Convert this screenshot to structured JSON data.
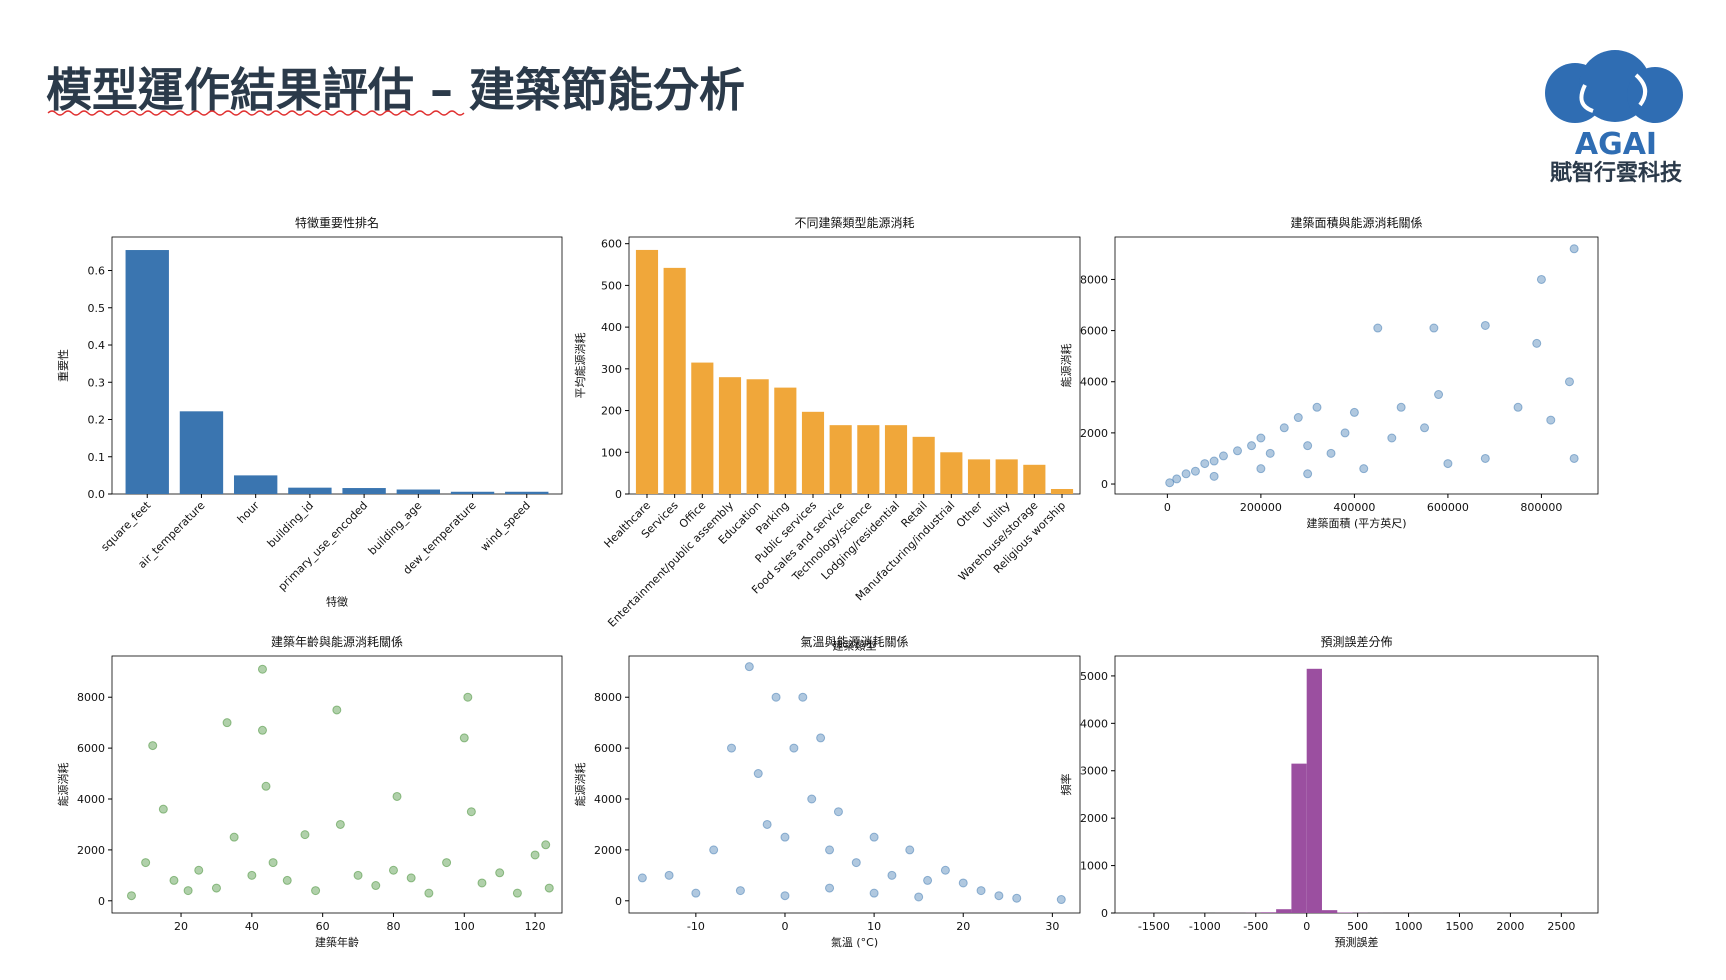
{
  "header": {
    "title": "模型運作結果評估 – 建築節能分析",
    "logo_name": "AGAI",
    "logo_company": "賦智行雲科技"
  },
  "chart_data": [
    {
      "type": "bar",
      "title": "特徵重要性排名",
      "x_label": "特徵",
      "y_label": "重要性",
      "color": "#3a75b0",
      "categories": [
        "square_feet",
        "air_temperature",
        "hour",
        "building_id",
        "primary_use_encoded",
        "building_age",
        "dew_temperature",
        "wind_speed"
      ],
      "values": [
        0.655,
        0.222,
        0.05,
        0.017,
        0.016,
        0.012,
        0.006,
        0.006
      ],
      "ylim": [
        0,
        0.69
      ],
      "yticks": [
        {
          "value": 0,
          "label": "0.0"
        },
        0.1,
        0.2,
        0.3,
        0.4,
        0.5,
        0.6
      ]
    },
    {
      "type": "bar",
      "title": "不同建築類型能源消耗",
      "x_label": "建築類型",
      "y_label": "平均能源消耗",
      "color": "#f0a73a",
      "categories": [
        "Healthcare",
        "Services",
        "Office",
        "Entertainment/public assembly",
        "Education",
        "Parking",
        "Public services",
        "Food sales and service",
        "Technology/science",
        "Lodging/residential",
        "Retail",
        "Manufacturing/industrial",
        "Other",
        "Utility",
        "Warehouse/storage",
        "Religious worship"
      ],
      "values": [
        585,
        542,
        315,
        280,
        275,
        255,
        197,
        165,
        165,
        165,
        137,
        100,
        83,
        83,
        70,
        12
      ],
      "ylim": [
        0,
        616
      ],
      "yticks": [
        0,
        100,
        200,
        300,
        400,
        500,
        600
      ]
    },
    {
      "type": "scatter",
      "title": "建築面積與能源消耗關係",
      "x_label": "建築面積 (平方英尺)",
      "y_label": "能源消耗",
      "color": "#3a75b0",
      "x": [
        5000,
        20000,
        40000,
        60000,
        80000,
        100000,
        120000,
        150000,
        180000,
        200000,
        220000,
        250000,
        280000,
        300000,
        320000,
        350000,
        380000,
        400000,
        420000,
        450000,
        480000,
        500000,
        550000,
        570000,
        580000,
        600000,
        680000,
        680000,
        750000,
        790000,
        800000,
        820000,
        860000,
        870000,
        870000,
        100000,
        200000,
        300000
      ],
      "values": [
        50,
        200,
        400,
        500,
        800,
        900,
        1100,
        1300,
        1500,
        1800,
        1200,
        2200,
        2600,
        1500,
        3000,
        1200,
        2000,
        2800,
        600,
        6100,
        1800,
        3000,
        2200,
        6100,
        3500,
        800,
        6200,
        1000,
        3000,
        5500,
        8000,
        2500,
        4000,
        9200,
        1000,
        300,
        600,
        400
      ],
      "xlim": [
        -112000,
        921000
      ],
      "ylim": [
        -390,
        9660
      ],
      "xticks": [
        0,
        200000,
        400000,
        600000,
        800000
      ],
      "yticks": [
        0,
        2000,
        4000,
        6000,
        8000
      ]
    },
    {
      "type": "scatter",
      "title": "建築年齡與能源消耗關係",
      "x_label": "建築年齡",
      "y_label": "能源消耗",
      "color": "#3a8a2a",
      "x": [
        6,
        10,
        12,
        15,
        18,
        22,
        25,
        30,
        33,
        35,
        40,
        43,
        43,
        44,
        46,
        50,
        55,
        58,
        64,
        65,
        70,
        75,
        80,
        81,
        85,
        90,
        95,
        100,
        101,
        102,
        105,
        110,
        115,
        120,
        123,
        124
      ],
      "values": [
        200,
        1500,
        6100,
        3600,
        800,
        400,
        1200,
        500,
        7000,
        2500,
        1000,
        9100,
        6700,
        4500,
        1500,
        800,
        2600,
        400,
        7500,
        3000,
        1000,
        600,
        1200,
        4100,
        900,
        300,
        1500,
        6400,
        8000,
        3500,
        700,
        1100,
        300,
        1800,
        2200,
        500
      ],
      "xlim": [
        0.5,
        127.6
      ],
      "ylim": [
        -480,
        9620
      ],
      "xticks": [
        20,
        40,
        60,
        80,
        100,
        120
      ],
      "yticks": [
        0,
        2000,
        4000,
        6000,
        8000
      ]
    },
    {
      "type": "scatter",
      "title": "氣溫與能源消耗關係",
      "x_label": "氣溫 (°C)",
      "y_label": "能源消耗",
      "color": "#3a75b0",
      "x": [
        -16,
        -13,
        -10,
        -8,
        -6,
        -4,
        -3,
        -2,
        -1,
        0,
        1,
        2,
        3,
        4,
        5,
        6,
        8,
        10,
        12,
        14,
        16,
        18,
        20,
        22,
        24,
        26,
        31,
        0,
        5,
        10,
        -5,
        15
      ],
      "values": [
        900,
        1000,
        300,
        2000,
        6000,
        9200,
        5000,
        3000,
        8000,
        2500,
        6000,
        8000,
        4000,
        6400,
        2000,
        3500,
        1500,
        2500,
        1000,
        2000,
        800,
        1200,
        700,
        400,
        200,
        100,
        50,
        200,
        500,
        300,
        400,
        150
      ],
      "xlim": [
        -17.5,
        33.1
      ],
      "ylim": [
        -480,
        9620
      ],
      "xticks": [
        -10,
        0,
        10,
        20,
        30
      ],
      "yticks": [
        0,
        2000,
        4000,
        6000,
        8000
      ]
    },
    {
      "type": "histogram",
      "title": "預測誤差分佈",
      "x_label": "預測誤差",
      "y_label": "頻率",
      "color": "#9b4fa0",
      "bins": [
        -1650,
        -1500,
        -1350,
        -1200,
        -1050,
        -900,
        -750,
        -600,
        -450,
        -300,
        -150,
        0,
        150,
        300,
        450,
        600,
        750,
        900,
        1050,
        1200,
        1350,
        1500,
        1650,
        1800,
        1950,
        2100,
        2250,
        2400,
        2550,
        2700
      ],
      "values": [
        1,
        0,
        0,
        0,
        0,
        1,
        2,
        4,
        15,
        80,
        3150,
        5150,
        60,
        10,
        4,
        2,
        1,
        1,
        0,
        0,
        0,
        0,
        0,
        0,
        0,
        0,
        0,
        0,
        1
      ],
      "xlim": [
        -1882,
        2860
      ],
      "ylim": [
        0,
        5420
      ],
      "xticks": [
        -1500,
        -1000,
        -500,
        0,
        500,
        1000,
        1500,
        2000,
        2500
      ],
      "yticks": [
        0,
        1000,
        2000,
        3000,
        4000,
        5000
      ]
    }
  ]
}
